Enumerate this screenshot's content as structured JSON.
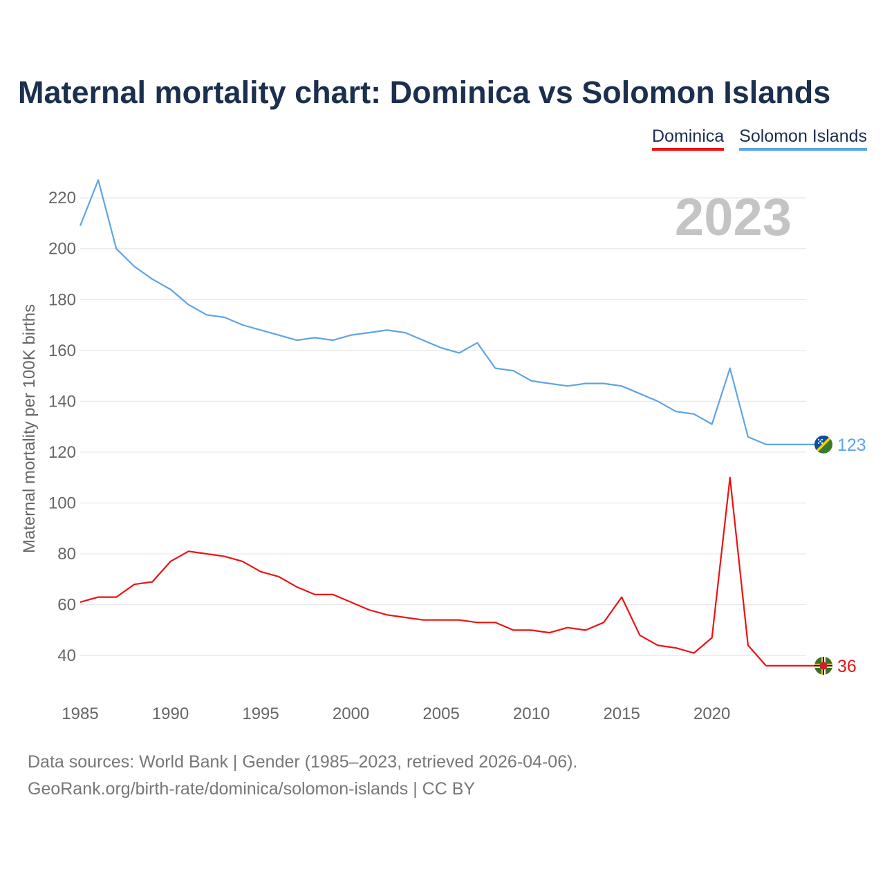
{
  "title": "Maternal mortality chart: Dominica vs Solomon Islands",
  "legend": [
    {
      "label": "Dominica",
      "color": "#ee1111"
    },
    {
      "label": "Solomon Islands",
      "color": "#5fa3e6"
    }
  ],
  "year_watermark": "2023",
  "footer": {
    "sources": "Data sources: World Bank | Gender (1985–2023, retrieved 2026-04-06).",
    "credit": "GeoRank.org/birth-rate/dominica/solomon-islands | CC BY"
  },
  "chart_data": {
    "type": "line",
    "title": "Maternal mortality chart: Dominica vs Solomon Islands",
    "xlabel": "",
    "ylabel": "Maternal mortality per 100K births",
    "xlim": [
      1985,
      2023
    ],
    "ylim": [
      24,
      232
    ],
    "x_ticks": [
      1985,
      1990,
      1995,
      2000,
      2005,
      2010,
      2015,
      2020
    ],
    "y_ticks": [
      40,
      60,
      80,
      100,
      120,
      140,
      160,
      180,
      200,
      220
    ],
    "grid": true,
    "legend_position": "top-right",
    "x": [
      1985,
      1986,
      1987,
      1988,
      1989,
      1990,
      1991,
      1992,
      1993,
      1994,
      1995,
      1996,
      1997,
      1998,
      1999,
      2000,
      2001,
      2002,
      2003,
      2004,
      2005,
      2006,
      2007,
      2008,
      2009,
      2010,
      2011,
      2012,
      2013,
      2014,
      2015,
      2016,
      2017,
      2018,
      2019,
      2020,
      2021,
      2022,
      2023
    ],
    "series": [
      {
        "name": "Dominica",
        "color": "#ee1111",
        "end_label": "36",
        "flag": "dominica-flag-icon",
        "values": [
          61,
          63,
          63,
          68,
          69,
          77,
          81,
          80,
          79,
          77,
          73,
          71,
          67,
          64,
          64,
          61,
          58,
          56,
          55,
          54,
          54,
          54,
          53,
          53,
          50,
          50,
          49,
          51,
          50,
          53,
          63,
          48,
          44,
          43,
          41,
          47,
          110,
          44,
          36
        ]
      },
      {
        "name": "Solomon Islands",
        "color": "#5fa3e6",
        "end_label": "123",
        "flag": "solomon-islands-flag-icon",
        "values": [
          209,
          227,
          200,
          193,
          188,
          184,
          178,
          174,
          173,
          170,
          168,
          166,
          164,
          165,
          164,
          166,
          167,
          168,
          167,
          164,
          161,
          159,
          163,
          153,
          152,
          148,
          147,
          146,
          147,
          147,
          146,
          143,
          140,
          136,
          135,
          131,
          153,
          126,
          123
        ]
      }
    ]
  }
}
